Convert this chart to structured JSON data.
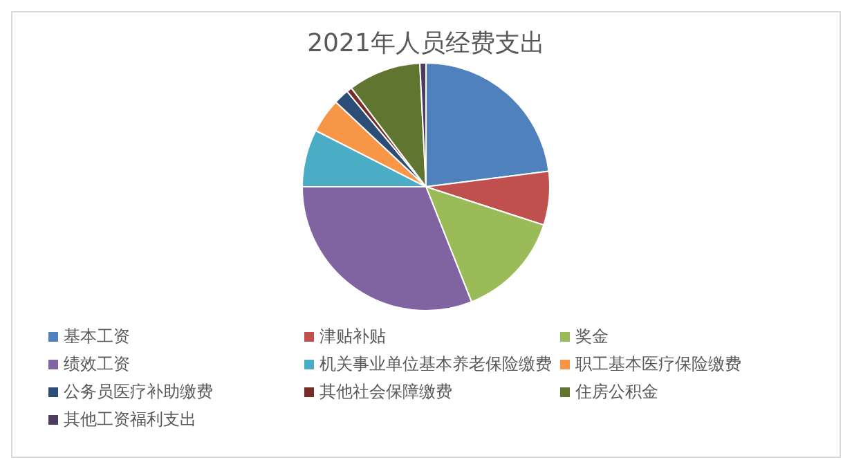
{
  "chart_data": {
    "type": "pie",
    "title": "2021年人员经费支出",
    "categories": [
      "基本工资",
      "津贴补贴",
      "奖金",
      "绩效工资",
      "机关事业单位基本养老保险缴费",
      "职工基本医疗保险缴费",
      "公务员医疗补助缴费",
      "其他社会保障缴费",
      "住房公积金",
      "其他工资福利支出"
    ],
    "values": [
      23,
      7,
      14,
      31,
      7.5,
      4.5,
      2,
      0.7,
      9.5,
      0.8
    ],
    "colors": [
      "#4f81bd",
      "#c0504d",
      "#9bbb59",
      "#8064a2",
      "#4bacc6",
      "#f79646",
      "#2c4d75",
      "#772c2a",
      "#5f7530",
      "#4d3b62"
    ],
    "legend": "bottom"
  }
}
